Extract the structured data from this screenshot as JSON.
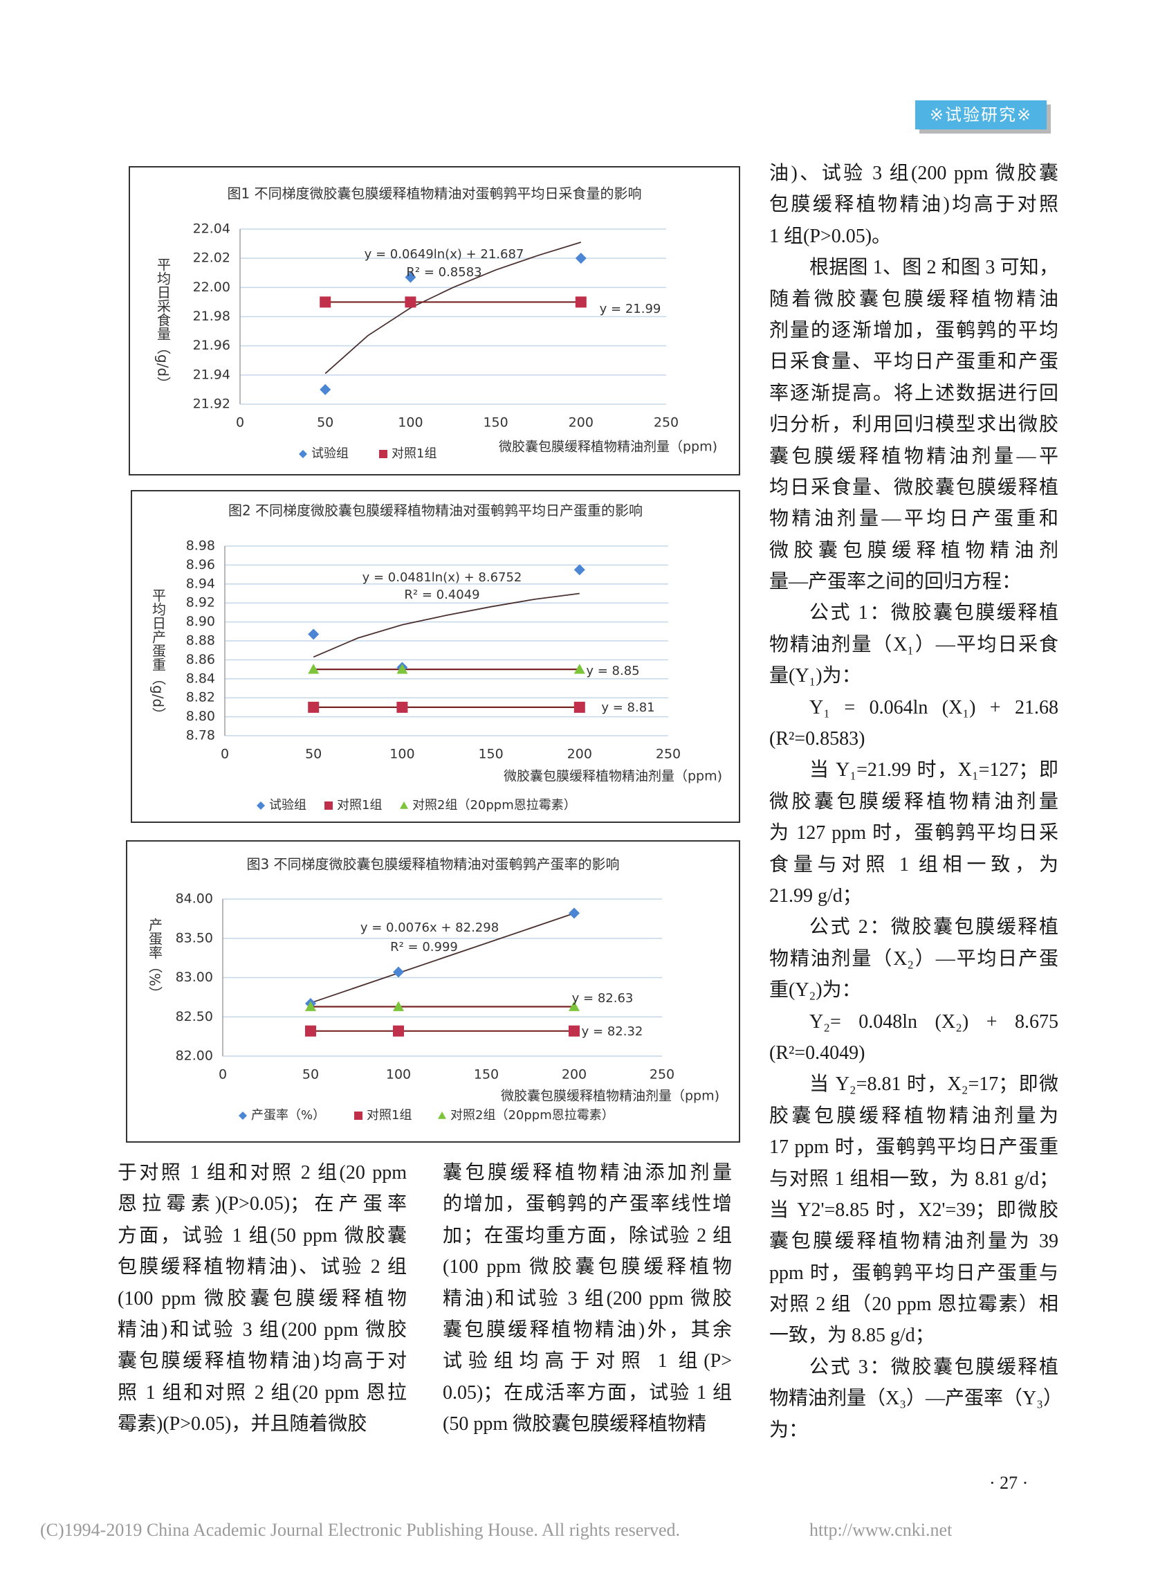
{
  "header": {
    "section": "※试验研究※"
  },
  "chart_data": [
    {
      "type": "scatter",
      "title": "图1  不同梯度微胶囊包膜缓释植物精油对蛋鹌鹑平均日采食量的影响",
      "x_label": "微胶囊包膜缓释植物精油剂量（ppm)",
      "y_label": "平均日采食量（g/d）",
      "x": [
        50,
        100,
        200
      ],
      "xlim": [
        0,
        250
      ],
      "xticks": [
        0,
        50,
        100,
        150,
        200,
        250
      ],
      "ylim": [
        21.92,
        22.04
      ],
      "yticks": [
        21.92,
        21.94,
        21.96,
        21.98,
        {
          "value": 22,
          "label": "22.00"
        },
        22.02,
        22.04
      ],
      "grid": true,
      "series": [
        {
          "name": "试验组",
          "color": "#4a86d4",
          "marker": "diamond",
          "line": false,
          "values": [
            21.93,
            22.007,
            22.02
          ]
        },
        {
          "name": "对照1组",
          "color": "#c0304a",
          "marker": "square",
          "line": true,
          "values": [
            21.99,
            21.99,
            21.99
          ]
        }
      ],
      "trendline": {
        "color": "#4b3030",
        "x": [
          50,
          75,
          100,
          125,
          150,
          175,
          200
        ],
        "values": [
          21.941,
          21.967,
          21.986,
          22.0,
          22.012,
          22.022,
          22.031
        ]
      },
      "annotations": [
        "y = 0.0649ln(x) + 21.687",
        "R² = 0.8583",
        "y = 21.99"
      ]
    },
    {
      "type": "scatter",
      "title": "图2  不同梯度微胶囊包膜缓释植物精油对蛋鹌鹑平均日产蛋重的影响",
      "x_label": "微胶囊包膜缓释植物精油剂量（ppm)",
      "y_label": "平均日产蛋重（g/d）",
      "x": [
        50,
        100,
        200
      ],
      "xlim": [
        0,
        250
      ],
      "xticks": [
        0,
        50,
        100,
        150,
        200,
        250
      ],
      "ylim": [
        8.78,
        8.98
      ],
      "yticks": [
        8.78,
        {
          "value": 8.8,
          "label": "8.80"
        },
        8.82,
        8.84,
        8.86,
        8.88,
        {
          "value": 8.9,
          "label": "8.90"
        },
        8.92,
        8.94,
        8.96,
        8.98
      ],
      "grid": true,
      "series": [
        {
          "name": "试验组",
          "color": "#4a86d4",
          "marker": "diamond",
          "line": false,
          "values": [
            8.887,
            8.852,
            8.955
          ]
        },
        {
          "name": "对照1组",
          "color": "#c0304a",
          "marker": "square",
          "line": true,
          "values": [
            8.81,
            8.81,
            8.81
          ]
        },
        {
          "name": "对照2组（20ppm恩拉霉素）",
          "color": "#7cc43a",
          "marker": "triangle",
          "line": true,
          "values": [
            8.85,
            8.85,
            8.85
          ]
        }
      ],
      "trendline": {
        "color": "#4b3030",
        "x": [
          50,
          75,
          100,
          125,
          150,
          175,
          200
        ],
        "values": [
          8.863,
          8.883,
          8.897,
          8.907,
          8.916,
          8.924,
          8.93
        ]
      },
      "annotations": [
        "y = 0.0481ln(x) + 8.6752",
        "R² = 0.4049",
        "y = 8.85",
        "y = 8.81"
      ]
    },
    {
      "type": "scatter",
      "title": "图3  不同梯度微胶囊包膜缓释植物精油对蛋鹌鹑产蛋率的影响",
      "x_label": "微胶囊包膜缓释植物精油剂量（ppm)",
      "y_label": "产蛋率（%）",
      "x": [
        50,
        100,
        200
      ],
      "xlim": [
        0,
        250
      ],
      "xticks": [
        0,
        50,
        100,
        150,
        200,
        250
      ],
      "ylim": [
        82,
        84
      ],
      "yticks": [
        {
          "value": 82,
          "label": "82.00"
        },
        {
          "value": 82.5,
          "label": "82.50"
        },
        {
          "value": 83,
          "label": "83.00"
        },
        {
          "value": 83.5,
          "label": "83.50"
        },
        {
          "value": 84,
          "label": "84.00"
        }
      ],
      "grid": true,
      "series": [
        {
          "name": "产蛋率（%）",
          "color": "#4a86d4",
          "marker": "diamond",
          "line": false,
          "values": [
            82.67,
            83.07,
            83.82
          ]
        },
        {
          "name": "对照1组",
          "color": "#c0304a",
          "marker": "square",
          "line": true,
          "values": [
            82.32,
            82.32,
            82.32
          ]
        },
        {
          "name": "对照2组（20ppm恩拉霉素）",
          "color": "#7cc43a",
          "marker": "triangle",
          "line": true,
          "values": [
            82.63,
            82.63,
            82.63
          ]
        }
      ],
      "trendline": {
        "color": "#4b3030",
        "x": [
          50,
          200
        ],
        "values": [
          82.678,
          83.818
        ]
      },
      "annotations": [
        "y = 0.0076x + 82.298",
        "R² = 0.999",
        "y = 82.63",
        "y = 82.32"
      ]
    }
  ],
  "columns": [
    {
      "paragraphs": [
        {
          "lines": [
            "于对照 1 组和对照 2 组(20 ppm",
            "恩拉霉素)(P>0.05)；在产蛋率",
            "方面，试验 1 组(50 ppm 微胶囊",
            "包膜缓释植物精油)、试验 2 组",
            "(100 ppm 微胶囊包膜缓释植物",
            "精油)和试验 3 组(200 ppm 微胶",
            "囊包膜缓释植物精油)均高于对",
            "照 1 组和对照 2 组(20 ppm 恩拉",
            "霉素)(P>0.05)，并且随着微胶"
          ]
        }
      ]
    },
    {
      "paragraphs": [
        {
          "lines": [
            "囊包膜缓释植物精油添加剂量",
            "的增加，蛋鹌鹑的产蛋率线性增",
            "加；在蛋均重方面，除试验 2 组",
            "(100 ppm 微胶囊包膜缓释植物",
            "精油)和试验 3 组(200 ppm 微胶",
            "囊包膜缓释植物精油)外，其余",
            "试验组均高于对照 1 组(P>",
            "0.05)；在成活率方面，试验 1 组",
            "(50 ppm 微胶囊包膜缓释植物精"
          ]
        }
      ]
    },
    {
      "paragraphs": [
        {
          "lines": [
            "油)、试验 3 组(200 ppm 微胶囊",
            "包膜缓释植物精油)均高于对照",
            "1 组(P>0.05)。"
          ]
        },
        {
          "lines": [
            "根据图 1、图 2 和图 3 可知，",
            "随着微胶囊包膜缓释植物精油",
            "剂量的逐渐增加，蛋鹌鹑的平均",
            "日采食量、平均日产蛋重和产蛋",
            "率逐渐提高。将上述数据进行回",
            "归分析，利用回归模型求出微胶",
            "囊包膜缓释植物精油剂量—平",
            "均日采食量、微胶囊包膜缓释植",
            "物精油剂量—平均日产蛋重和",
            "微胶囊包膜缓释植物精油剂",
            "量—产蛋率之间的回归方程："
          ]
        },
        {
          "lines": [
            "公式 1：微胶囊包膜缓释植",
            "物精油剂量（X₁）—平均日采食",
            "量(Y₁)为："
          ]
        },
        {
          "lines": [
            "Y₁ = 0.064ln (X₁) + 21.68",
            "(R²=0.8583)"
          ]
        },
        {
          "lines": [
            "当 Y₁=21.99 时，X₁=127；即",
            "微胶囊包膜缓释植物精油剂量",
            "为 127 ppm 时，蛋鹌鹑平均日采",
            "食量与对照 1 组相一致，为",
            "21.99 g/d；"
          ]
        },
        {
          "lines": [
            "公式 2：微胶囊包膜缓释植",
            "物精油剂量（X₂）—平均日产蛋",
            "重(Y₂)为："
          ]
        },
        {
          "lines": [
            "Y₂= 0.048ln (X₂) + 8.675",
            "(R²=0.4049)"
          ]
        },
        {
          "lines": [
            "当 Y₂=8.81 时，X₂=17；即微",
            "胶囊包膜缓释植物精油剂量为",
            "17 ppm 时，蛋鹌鹑平均日产蛋重",
            "与对照 1 组相一致，为 8.81 g/d；",
            "当 Y2'=8.85 时，X2'=39；即微胶",
            "囊包膜缓释植物精油剂量为 39",
            "ppm 时，蛋鹌鹑平均日产蛋重与",
            "对照 2 组（20 ppm 恩拉霉素）相",
            "一致，为 8.85 g/d；"
          ]
        },
        {
          "lines": [
            "公式 3：微胶囊包膜缓释植",
            "物精油剂量（X₃）—产蛋率（Y₃）",
            "为："
          ]
        }
      ]
    }
  ],
  "page_number": "· 27 ·",
  "footer": {
    "copyright": "(C)1994-2019 China Academic Journal Electronic Publishing House. All rights reserved.",
    "url": "http://www.cnki.net"
  }
}
